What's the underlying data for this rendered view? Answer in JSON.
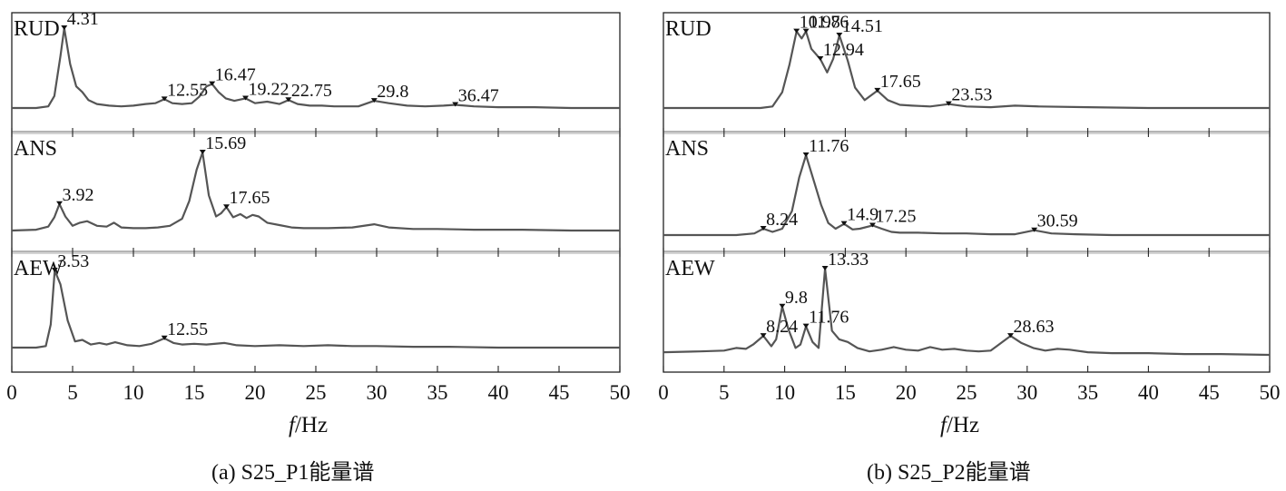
{
  "chart_data": [
    {
      "type": "line",
      "caption": "(a) S25_P1能量谱",
      "xlabel_italic": "f",
      "xlabel_rest": "/Hz",
      "xlim": [
        0,
        50
      ],
      "xticks": [
        "0",
        "5",
        "10",
        "15",
        "20",
        "25",
        "30",
        "35",
        "40",
        "45",
        "50"
      ],
      "grid": false,
      "panels": [
        {
          "name": "RUD",
          "x": [
            0,
            2,
            3,
            3.5,
            4,
            4.31,
            4.8,
            5.3,
            5.8,
            6.3,
            7,
            8,
            9,
            10,
            11,
            11.8,
            12.55,
            13.2,
            14,
            14.8,
            15.4,
            16,
            16.47,
            17,
            17.6,
            18.3,
            19.22,
            20,
            21,
            22,
            22.75,
            23.5,
            24.5,
            25.5,
            26.5,
            27.5,
            28.5,
            29.8,
            31,
            32.5,
            34,
            35.5,
            36.47,
            38,
            40,
            43,
            46,
            50
          ],
          "y": [
            0,
            0,
            0.02,
            0.15,
            0.65,
            1.0,
            0.55,
            0.27,
            0.2,
            0.1,
            0.05,
            0.03,
            0.02,
            0.03,
            0.05,
            0.06,
            0.11,
            0.06,
            0.05,
            0.06,
            0.14,
            0.27,
            0.3,
            0.2,
            0.12,
            0.09,
            0.12,
            0.06,
            0.08,
            0.05,
            0.1,
            0.05,
            0.03,
            0.03,
            0.02,
            0.02,
            0.02,
            0.09,
            0.06,
            0.03,
            0.02,
            0.03,
            0.04,
            0.02,
            0.01,
            0.01,
            0,
            0
          ],
          "labels": [
            {
              "x": 4.31,
              "y": 1.0,
              "text": "4.31"
            },
            {
              "x": 12.55,
              "y": 0.11,
              "text": "12.55"
            },
            {
              "x": 16.47,
              "y": 0.3,
              "text": "16.47"
            },
            {
              "x": 19.22,
              "y": 0.12,
              "text": "19.22"
            },
            {
              "x": 22.75,
              "y": 0.1,
              "text": "22.75"
            },
            {
              "x": 29.8,
              "y": 0.09,
              "text": "29.8"
            },
            {
              "x": 36.47,
              "y": 0.04,
              "text": "36.47"
            }
          ]
        },
        {
          "name": "ANS",
          "x": [
            0,
            2,
            3,
            3.5,
            3.92,
            4.4,
            5,
            5.6,
            6.2,
            7,
            7.8,
            8.4,
            9,
            10,
            11,
            12,
            13,
            14,
            14.6,
            15.2,
            15.69,
            16.2,
            16.8,
            17.2,
            17.65,
            18.2,
            18.8,
            19.3,
            19.8,
            20.3,
            21,
            22,
            23,
            24,
            25,
            26,
            28,
            29.8,
            31,
            33,
            35,
            38,
            42,
            46,
            50
          ],
          "y": [
            0,
            0.01,
            0.05,
            0.17,
            0.34,
            0.18,
            0.06,
            0.1,
            0.12,
            0.06,
            0.05,
            0.1,
            0.04,
            0.03,
            0.03,
            0.04,
            0.06,
            0.15,
            0.38,
            0.78,
            1.0,
            0.45,
            0.18,
            0.22,
            0.3,
            0.17,
            0.21,
            0.16,
            0.2,
            0.18,
            0.1,
            0.07,
            0.04,
            0.03,
            0.03,
            0.03,
            0.04,
            0.08,
            0.04,
            0.02,
            0.02,
            0.01,
            0.01,
            0,
            0
          ],
          "labels": [
            {
              "x": 3.92,
              "y": 0.34,
              "text": "3.92"
            },
            {
              "x": 15.69,
              "y": 1.0,
              "text": "15.69"
            },
            {
              "x": 17.65,
              "y": 0.3,
              "text": "17.65"
            }
          ]
        },
        {
          "name": "AEW",
          "x": [
            0,
            2,
            2.8,
            3.2,
            3.53,
            4,
            4.6,
            5.2,
            5.8,
            6.5,
            7.2,
            7.8,
            8.5,
            9.5,
            10.5,
            11.5,
            12.55,
            13.3,
            14,
            15,
            16,
            17.5,
            18.5,
            20,
            22,
            24,
            26,
            28,
            30,
            33,
            36,
            40,
            45,
            50
          ],
          "y": [
            0,
            0,
            0.02,
            0.3,
            1.0,
            0.82,
            0.35,
            0.08,
            0.1,
            0.04,
            0.06,
            0.04,
            0.07,
            0.03,
            0.02,
            0.05,
            0.12,
            0.06,
            0.04,
            0.05,
            0.04,
            0.06,
            0.03,
            0.02,
            0.03,
            0.02,
            0.03,
            0.02,
            0.02,
            0.01,
            0.01,
            0,
            0,
            0
          ],
          "labels": [
            {
              "x": 3.53,
              "y": 1.0,
              "text": "3.53"
            },
            {
              "x": 12.55,
              "y": 0.12,
              "text": "12.55"
            }
          ]
        }
      ]
    },
    {
      "type": "line",
      "caption": "(b) S25_P2能量谱",
      "xlabel_italic": "f",
      "xlabel_rest": "/Hz",
      "xlim": [
        0,
        50
      ],
      "xticks": [
        "0",
        "5",
        "10",
        "15",
        "20",
        "25",
        "30",
        "35",
        "40",
        "45",
        "50"
      ],
      "grid": false,
      "panels": [
        {
          "name": "RUD",
          "x": [
            0,
            5,
            8,
            9,
            9.8,
            10.4,
            10.98,
            11.4,
            11.76,
            12.2,
            12.94,
            13.5,
            14,
            14.51,
            15.2,
            15.8,
            16.6,
            17.65,
            18.5,
            19.5,
            20.5,
            22,
            23.53,
            25,
            27,
            29,
            31,
            35,
            40,
            45,
            50
          ],
          "y": [
            0,
            0,
            0,
            0.02,
            0.2,
            0.55,
            0.97,
            0.88,
            0.97,
            0.75,
            0.62,
            0.45,
            0.62,
            0.92,
            0.6,
            0.26,
            0.1,
            0.22,
            0.1,
            0.04,
            0.03,
            0.02,
            0.05,
            0.02,
            0.01,
            0.03,
            0.02,
            0.01,
            0,
            0,
            0
          ],
          "labels": [
            {
              "x": 10.98,
              "y": 0.97,
              "text": "10.98"
            },
            {
              "x": 11.76,
              "y": 0.97,
              "text": "11.76"
            },
            {
              "x": 14.51,
              "y": 0.92,
              "text": "14.51"
            },
            {
              "x": 12.94,
              "y": 0.62,
              "text": "12.94"
            },
            {
              "x": 17.65,
              "y": 0.22,
              "text": "17.65"
            },
            {
              "x": 23.53,
              "y": 0.05,
              "text": "23.53"
            }
          ]
        },
        {
          "name": "ANS",
          "x": [
            0,
            6,
            7.5,
            8.24,
            9,
            9.8,
            10.6,
            11.2,
            11.76,
            12.4,
            13,
            13.6,
            14.2,
            14.9,
            15.6,
            16.2,
            17.25,
            18,
            18.8,
            19.5,
            21,
            23,
            25,
            27,
            29,
            30.59,
            32,
            34,
            37,
            40,
            45,
            50
          ],
          "y": [
            0,
            0,
            0.02,
            0.08,
            0.04,
            0.08,
            0.3,
            0.72,
            1.0,
            0.68,
            0.38,
            0.15,
            0.08,
            0.14,
            0.07,
            0.08,
            0.12,
            0.08,
            0.04,
            0.03,
            0.03,
            0.02,
            0.02,
            0.01,
            0.01,
            0.06,
            0.02,
            0.01,
            0,
            0,
            0,
            0
          ],
          "labels": [
            {
              "x": 8.24,
              "y": 0.08,
              "text": "8.24"
            },
            {
              "x": 11.76,
              "y": 1.0,
              "text": "11.76"
            },
            {
              "x": 14.9,
              "y": 0.14,
              "text": "14.9"
            },
            {
              "x": 17.25,
              "y": 0.12,
              "text": "17.25"
            },
            {
              "x": 30.59,
              "y": 0.06,
              "text": "30.59"
            }
          ]
        },
        {
          "name": "AEW",
          "x": [
            0,
            3,
            5,
            6,
            6.8,
            7.4,
            8.24,
            8.9,
            9.3,
            9.8,
            10.3,
            10.9,
            11.3,
            11.76,
            12.3,
            12.8,
            13.33,
            13.9,
            14.5,
            15.2,
            16,
            17,
            18,
            19,
            20,
            21,
            22,
            23,
            24,
            25,
            26,
            27,
            28.63,
            29.5,
            30.5,
            31.5,
            32.5,
            33.5,
            35,
            37,
            40,
            43,
            46,
            50
          ],
          "y": [
            0.03,
            0.04,
            0.05,
            0.08,
            0.07,
            0.12,
            0.22,
            0.1,
            0.18,
            0.56,
            0.3,
            0.08,
            0.12,
            0.33,
            0.15,
            0.08,
            1.0,
            0.28,
            0.18,
            0.15,
            0.08,
            0.04,
            0.06,
            0.09,
            0.06,
            0.05,
            0.09,
            0.06,
            0.07,
            0.05,
            0.04,
            0.05,
            0.22,
            0.14,
            0.08,
            0.05,
            0.07,
            0.06,
            0.03,
            0.02,
            0.02,
            0.01,
            0.01,
            0
          ],
          "labels": [
            {
              "x": 8.24,
              "y": 0.22,
              "text": "8.24"
            },
            {
              "x": 9.8,
              "y": 0.56,
              "text": "9.8"
            },
            {
              "x": 11.76,
              "y": 0.33,
              "text": "11.76"
            },
            {
              "x": 13.33,
              "y": 1.0,
              "text": "13.33"
            },
            {
              "x": 28.63,
              "y": 0.22,
              "text": "28.63"
            }
          ]
        }
      ]
    }
  ]
}
